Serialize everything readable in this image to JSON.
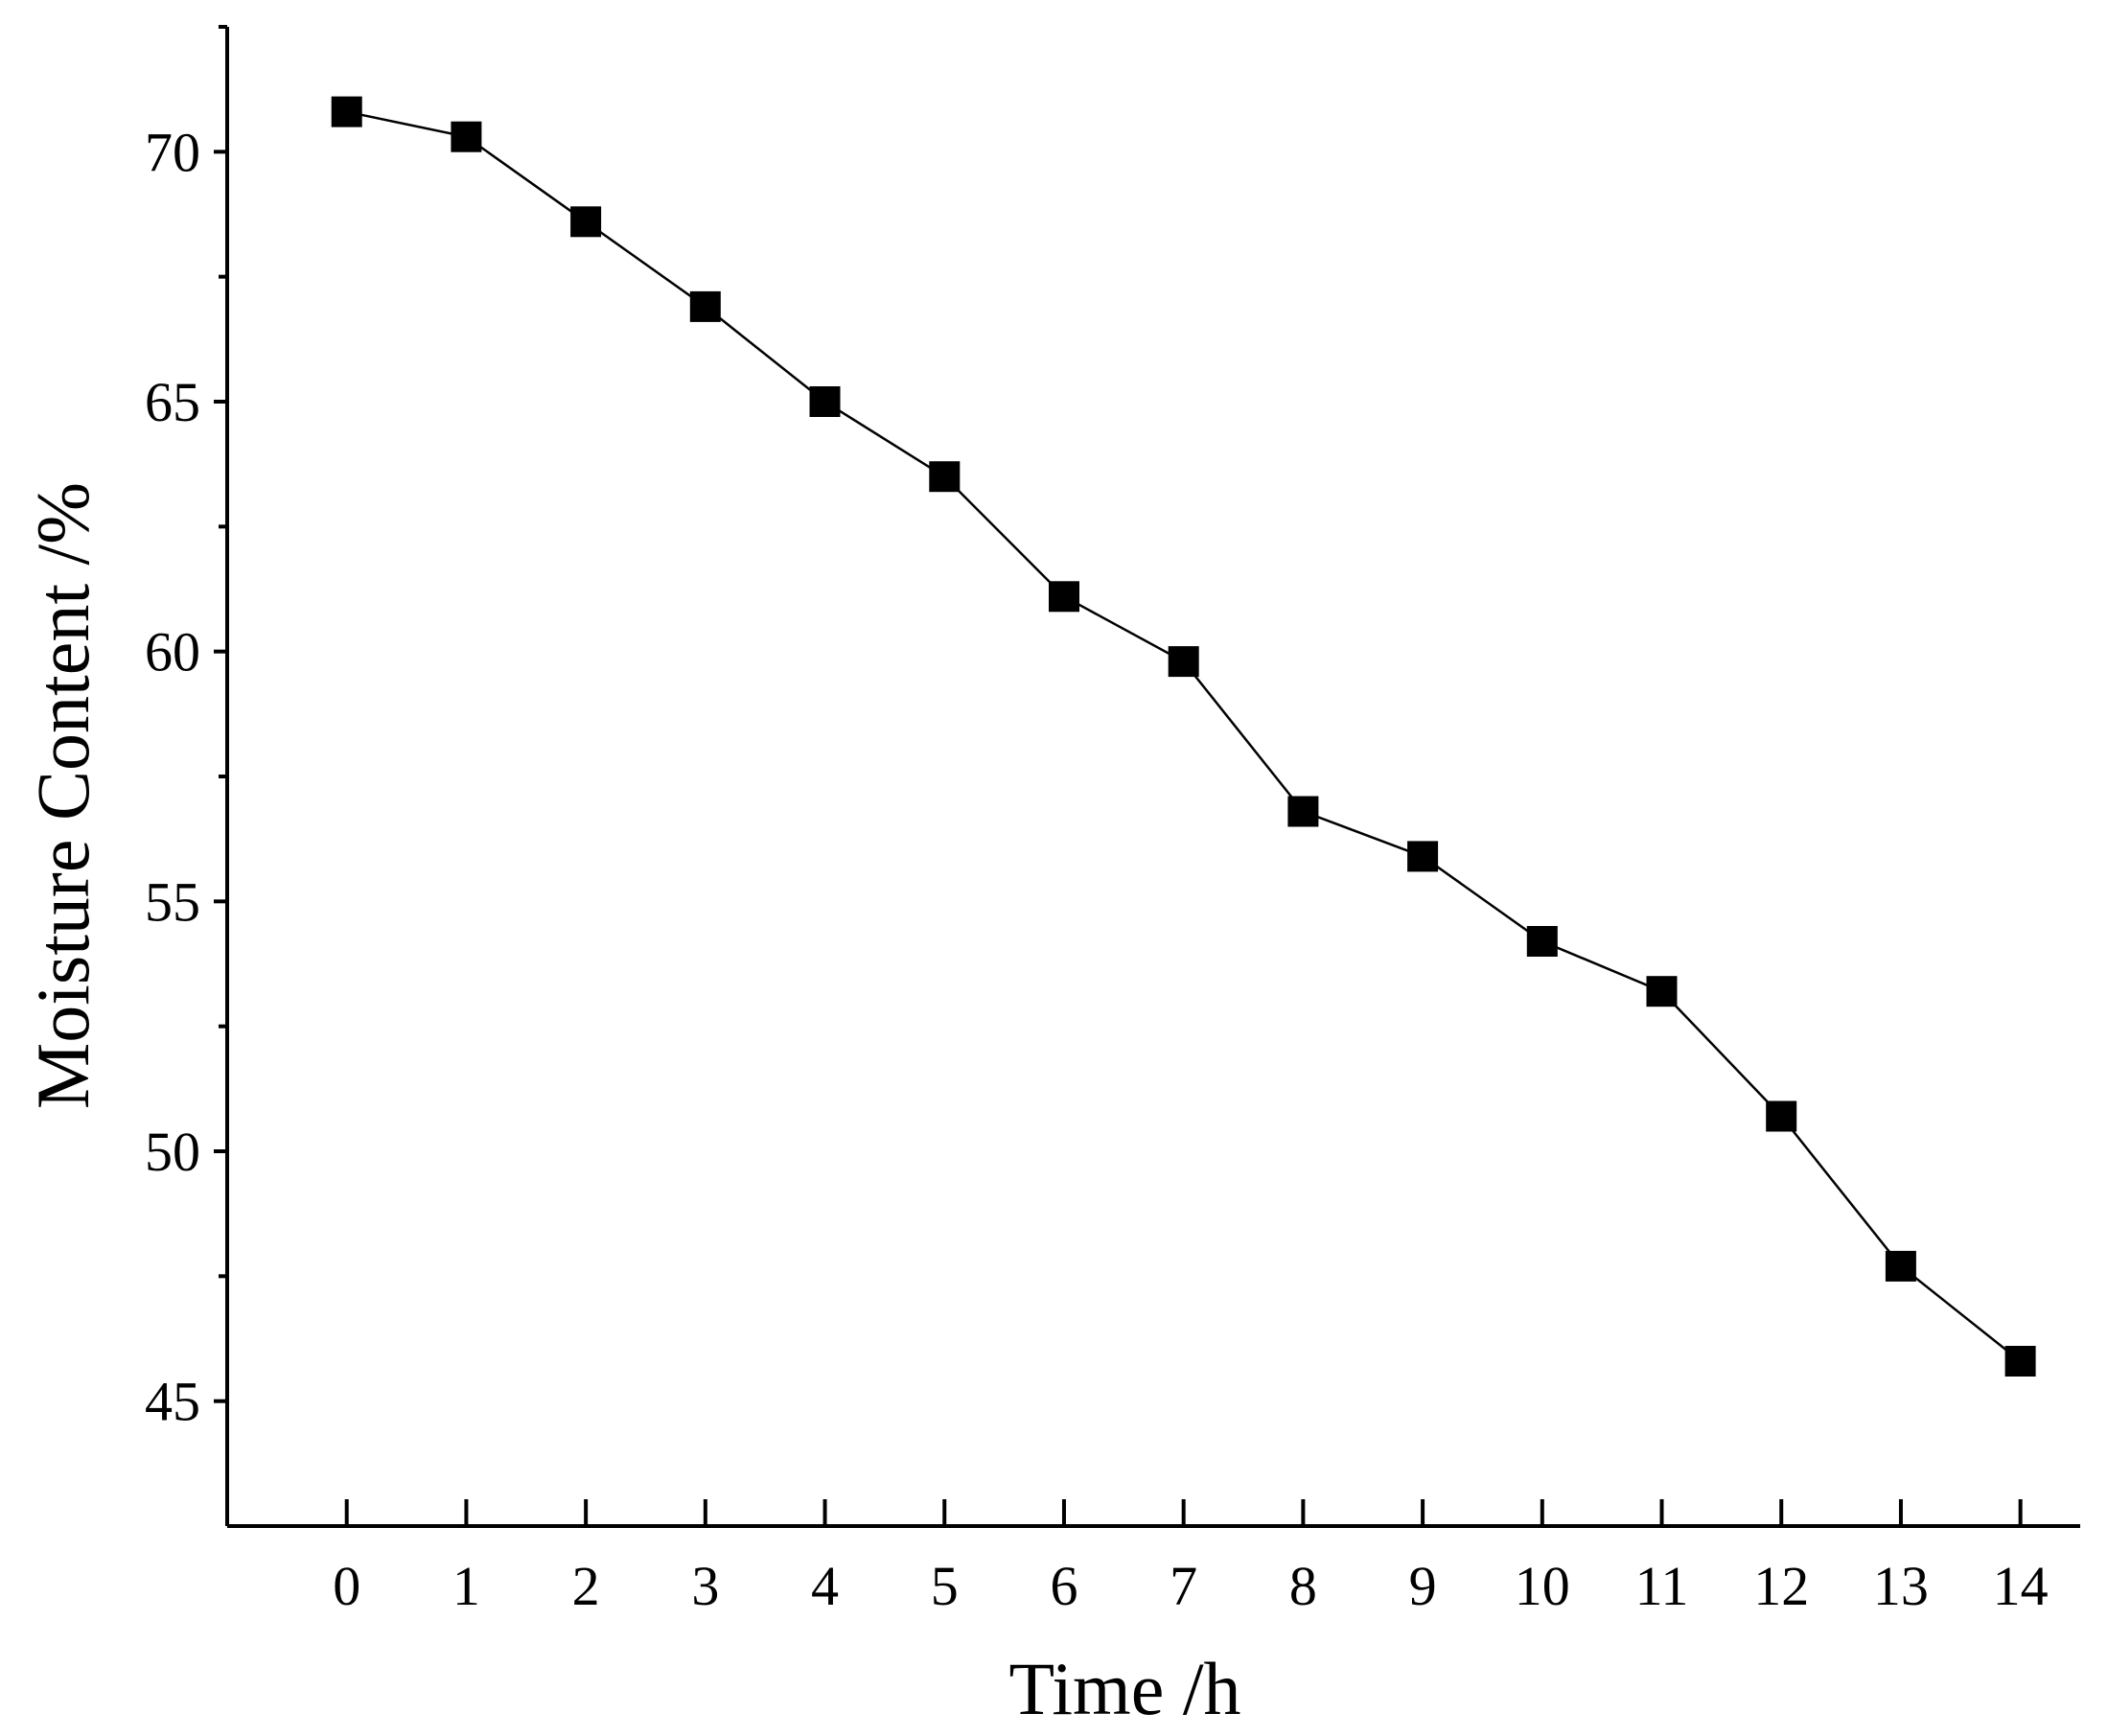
{
  "chart_data": {
    "type": "line",
    "title": "",
    "xlabel": "Time /h",
    "ylabel": "Moisture Content /%",
    "xlim": [
      -1,
      14.5
    ],
    "ylim": [
      42.5,
      72.5
    ],
    "x_ticks": [
      0,
      1,
      2,
      3,
      4,
      5,
      6,
      7,
      8,
      9,
      10,
      11,
      12,
      13,
      14
    ],
    "y_ticks_major": [
      45,
      50,
      55,
      60,
      65,
      70
    ],
    "y_ticks_minor": [
      47.5,
      52.5,
      57.5,
      62.5,
      67.5,
      72.5
    ],
    "grid": false,
    "legend": "none",
    "marker": "square",
    "colors": {
      "series": "#000000",
      "axis": "#000000"
    },
    "series": [
      {
        "x": [
          0,
          1,
          2,
          3,
          4,
          5,
          6,
          7,
          8,
          9,
          10,
          11,
          12,
          13,
          14
        ],
        "values": [
          70.8,
          70.3,
          68.6,
          66.9,
          65.0,
          63.5,
          61.1,
          59.8,
          56.8,
          55.9,
          54.2,
          53.2,
          50.7,
          47.7,
          45.8
        ]
      }
    ]
  }
}
